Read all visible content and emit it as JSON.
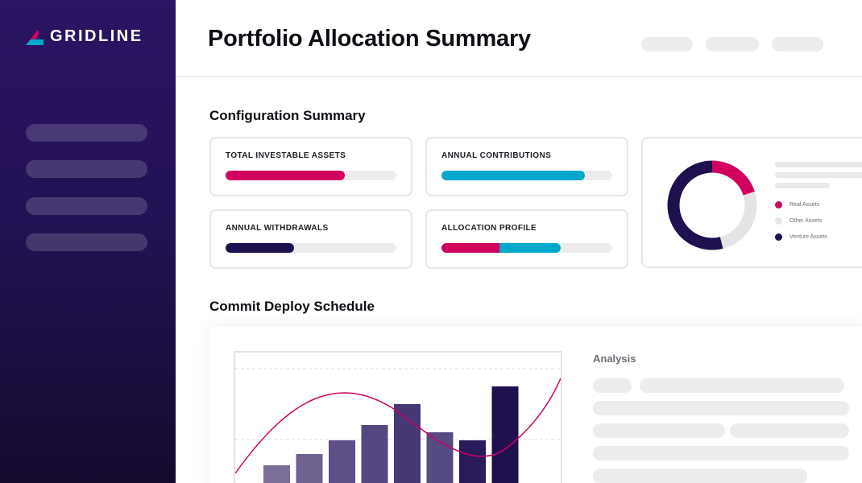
{
  "brand": {
    "name": "GRIDLINE",
    "colors": {
      "magenta": "#d1005f",
      "cyan": "#00a9cc",
      "navy": "#1f1050",
      "track": "#ececee"
    }
  },
  "sidebar": {
    "items": [
      {
        "label": ""
      },
      {
        "label": ""
      },
      {
        "label": ""
      },
      {
        "label": ""
      }
    ]
  },
  "header": {
    "title": "Portfolio Allocation Summary",
    "actions": [
      "",
      "",
      ""
    ]
  },
  "configuration": {
    "title": "Configuration Summary",
    "cards": [
      {
        "label": "TOTAL INVESTABLE ASSETS",
        "segments": [
          {
            "value": 0.7,
            "color": "#d1005f"
          }
        ]
      },
      {
        "label": "ANNUAL CONTRIBUTIONS",
        "segments": [
          {
            "value": 0.84,
            "color": "#00a9cc"
          }
        ]
      },
      {
        "label": "ANNUAL WITHDRAWALS",
        "segments": [
          {
            "value": 0.4,
            "color": "#1f1050"
          }
        ]
      },
      {
        "label": "ALLOCATION PROFILE",
        "segments": [
          {
            "value": 0.34,
            "color": "#d1005f"
          },
          {
            "value": 0.36,
            "color": "#00a9cc"
          }
        ]
      }
    ],
    "donut": {
      "segments": [
        {
          "name": "Real Assets",
          "value": 0.2,
          "color": "#d1005f"
        },
        {
          "name": "Other Assets",
          "value": 0.26,
          "color": "#e4e4e7"
        },
        {
          "name": "Venture Assets",
          "value": 0.54,
          "color": "#1f1050"
        }
      ]
    }
  },
  "schedule": {
    "title": "Commit Deploy Schedule",
    "analysis_title": "Analysis",
    "chart_data": {
      "type": "bar",
      "categories": [
        "",
        "",
        "",
        "",
        "",
        "",
        "",
        ""
      ],
      "values": [
        40,
        54,
        71,
        90,
        116,
        81,
        71,
        138
      ],
      "ylim": [
        0,
        160
      ],
      "bar_colors": [
        "#7b6e99",
        "#6f6290",
        "#5e4f86",
        "#54467f",
        "#463775",
        "#564a82",
        "#2a1a5c",
        "#1f1050"
      ],
      "line_color": "#d1005f",
      "grid": true
    }
  }
}
